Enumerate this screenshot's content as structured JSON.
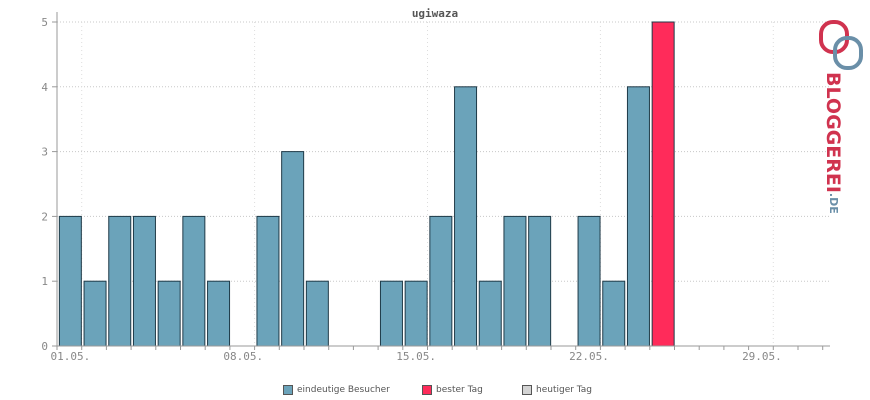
{
  "chart_data": {
    "type": "bar",
    "title": "ugiwaza",
    "days": [
      "01.05.",
      "02.05.",
      "03.05.",
      "04.05.",
      "05.05.",
      "06.05.",
      "07.05.",
      "08.05.",
      "09.05.",
      "10.05.",
      "11.05.",
      "12.05.",
      "13.05.",
      "14.05.",
      "15.05.",
      "16.05.",
      "17.05.",
      "18.05.",
      "19.05.",
      "20.05.",
      "21.05.",
      "22.05.",
      "23.05.",
      "24.05.",
      "25.05.",
      "26.05.",
      "27.05.",
      "28.05.",
      "29.05.",
      "30.05.",
      "31.05."
    ],
    "x_tick_labels": [
      "01.05.",
      "08.05.",
      "15.05.",
      "22.05.",
      "29.05."
    ],
    "series": [
      {
        "name": "eindeutige Besucher",
        "color": "#6ba3ba",
        "values": [
          2,
          1,
          2,
          2,
          1,
          2,
          1,
          0,
          2,
          3,
          1,
          0,
          0,
          1,
          1,
          2,
          4,
          1,
          2,
          2,
          0,
          2,
          1,
          4,
          0,
          0,
          0,
          0,
          0,
          0,
          0
        ]
      },
      {
        "name": "bester Tag",
        "color": "#ff2b5a",
        "values": [
          0,
          0,
          0,
          0,
          0,
          0,
          0,
          0,
          0,
          0,
          0,
          0,
          0,
          0,
          0,
          0,
          0,
          0,
          0,
          0,
          0,
          0,
          0,
          0,
          5,
          0,
          0,
          0,
          0,
          0,
          0
        ]
      },
      {
        "name": "heutiger Tag",
        "color": "#d3d3d3",
        "values": [
          0,
          0,
          0,
          0,
          0,
          0,
          0,
          0,
          0,
          0,
          0,
          0,
          0,
          0,
          0,
          0,
          0,
          0,
          0,
          0,
          0,
          0,
          0,
          0,
          0,
          0,
          0,
          0,
          0,
          0,
          0
        ]
      }
    ],
    "y_ticks": [
      0,
      1,
      2,
      3,
      4,
      5
    ],
    "ylim": [
      0,
      5
    ],
    "grid": true,
    "legend_position": "bottom-center"
  },
  "logo": {
    "text": "BLOGGEREI",
    "suffix": ".DE"
  }
}
